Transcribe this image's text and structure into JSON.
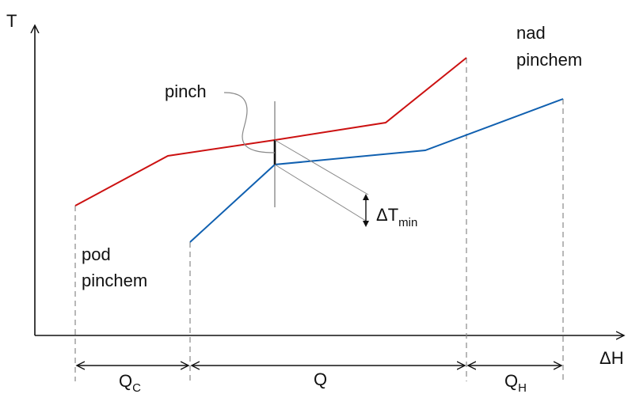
{
  "axes": {
    "y_label": "T",
    "x_label": "ΔH"
  },
  "labels": {
    "pinch": "pinch",
    "above_line1": "nad",
    "above_line2": "pinchem",
    "below_line1": "pod",
    "below_line2": "pinchem",
    "dtmin_main": "ΔT",
    "dtmin_sub": "min"
  },
  "intervals": {
    "qc_main": "Q",
    "qc_sub": "C",
    "q": "Q",
    "qh_main": "Q",
    "qh_sub": "H"
  },
  "colors": {
    "hot_curve": "#cc1111",
    "cold_curve": "#1060b0",
    "guide": "#888888",
    "axis": "#111111"
  }
}
